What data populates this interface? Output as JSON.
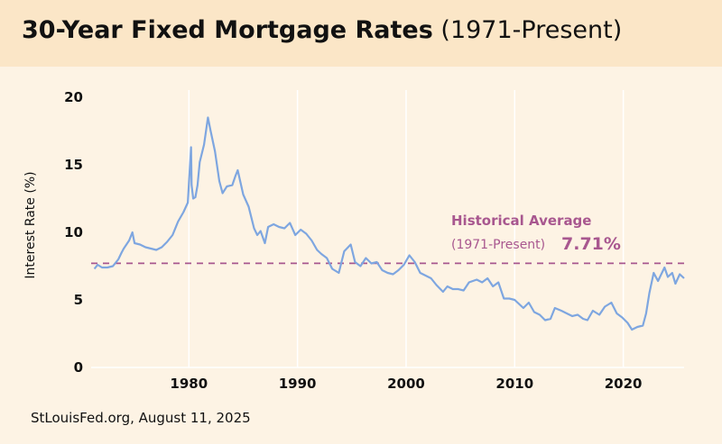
{
  "header": {
    "title_main": "30-Year Fixed Mortgage Rates",
    "title_sub": "(1971-Present)"
  },
  "footer": {
    "source": "StLouisFed.org, August 11, 2025"
  },
  "colors": {
    "header_bg": "#fbe6c7",
    "page_bg": "#fdf3e4",
    "series": "#7ea6e0",
    "average": "#a8578f",
    "grid": "#ffffff"
  },
  "chart_data": {
    "type": "line",
    "title": "30-Year Fixed Mortgage Rates (1971-Present)",
    "xlabel": "",
    "ylabel": "Interest Rate (%)",
    "xlim": [
      1971,
      2025.6
    ],
    "ylim": [
      0,
      20
    ],
    "xticks": [
      1980,
      1990,
      2000,
      2010,
      2020
    ],
    "yticks": [
      0,
      5,
      10,
      15,
      20
    ],
    "grid": "vertical lines at x ticks",
    "series": [
      {
        "x": [
          1971.3,
          1971.6,
          1972,
          1972.5,
          1973,
          1973.5,
          1973.8,
          1974,
          1974.5,
          1974.8,
          1975,
          1975.5,
          1976,
          1976.5,
          1977,
          1977.5,
          1978,
          1978.5,
          1979,
          1979.5,
          1979.9,
          1980.2,
          1980.25,
          1980.4,
          1980.6,
          1980.8,
          1981,
          1981.4,
          1981.75,
          1982,
          1982.4,
          1982.8,
          1983.1,
          1983.5,
          1984,
          1984.3,
          1984.5,
          1985,
          1985.5,
          1986,
          1986.3,
          1986.6,
          1987,
          1987.3,
          1987.8,
          1988.3,
          1988.8,
          1989.3,
          1989.8,
          1990.3,
          1990.8,
          1991.3,
          1991.8,
          1992.2,
          1992.7,
          1993.2,
          1993.8,
          1994.3,
          1994.9,
          1995.3,
          1995.8,
          1996.3,
          1996.8,
          1997.3,
          1997.8,
          1998.3,
          1998.8,
          1999.3,
          1999.8,
          2000.3,
          2000.8,
          2001.3,
          2001.8,
          2002.3,
          2002.8,
          2003.4,
          2003.8,
          2004.3,
          2004.8,
          2005.3,
          2005.8,
          2006.5,
          2007,
          2007.5,
          2008,
          2008.5,
          2009,
          2009.5,
          2010,
          2010.8,
          2011.3,
          2011.8,
          2012.3,
          2012.8,
          2013.3,
          2013.7,
          2014.3,
          2014.8,
          2015.3,
          2015.8,
          2016.3,
          2016.7,
          2017.2,
          2017.8,
          2018.3,
          2018.9,
          2019.4,
          2019.9,
          2020.4,
          2020.8,
          2021.3,
          2021.8,
          2022.1,
          2022.4,
          2022.8,
          2023.2,
          2023.8,
          2024.1,
          2024.5,
          2024.8,
          2025.2,
          2025.6
        ],
        "y": [
          7.3,
          7.6,
          7.4,
          7.4,
          7.5,
          8.0,
          8.5,
          8.8,
          9.4,
          10.0,
          9.2,
          9.1,
          8.9,
          8.8,
          8.7,
          8.9,
          9.3,
          9.8,
          10.8,
          11.5,
          12.2,
          16.3,
          13.5,
          12.5,
          12.6,
          13.5,
          15.2,
          16.5,
          18.5,
          17.5,
          16.0,
          13.8,
          12.9,
          13.4,
          13.5,
          14.2,
          14.6,
          12.8,
          11.9,
          10.3,
          9.8,
          10.1,
          9.2,
          10.4,
          10.6,
          10.4,
          10.3,
          10.7,
          9.8,
          10.2,
          9.9,
          9.4,
          8.7,
          8.4,
          8.1,
          7.3,
          7.0,
          8.6,
          9.1,
          7.8,
          7.5,
          8.1,
          7.7,
          7.8,
          7.2,
          7.0,
          6.9,
          7.2,
          7.6,
          8.3,
          7.8,
          7.0,
          6.8,
          6.6,
          6.1,
          5.6,
          6.0,
          5.8,
          5.8,
          5.7,
          6.3,
          6.5,
          6.3,
          6.6,
          6.0,
          6.3,
          5.1,
          5.1,
          5.0,
          4.4,
          4.8,
          4.1,
          3.9,
          3.5,
          3.6,
          4.4,
          4.2,
          4.0,
          3.8,
          3.9,
          3.6,
          3.5,
          4.2,
          3.9,
          4.5,
          4.8,
          4.0,
          3.7,
          3.3,
          2.8,
          3.0,
          3.1,
          4.0,
          5.5,
          7.0,
          6.4,
          7.4,
          6.7,
          7.0,
          6.2,
          6.9,
          6.6
        ]
      }
    ],
    "average": {
      "value": 7.71,
      "label": "Historical Average",
      "sub_label": "(1971-Present)",
      "value_label": "7.71%"
    }
  }
}
